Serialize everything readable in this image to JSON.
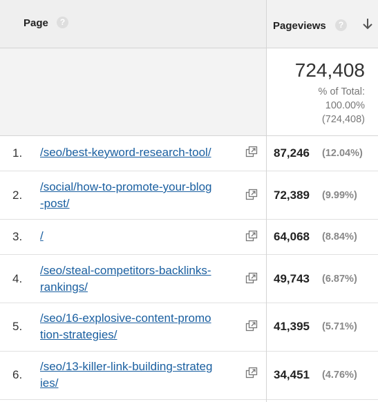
{
  "header": {
    "page_label": "Page",
    "pageviews_label": "Pageviews",
    "help_glyph": "?"
  },
  "totals": {
    "value": "724,408",
    "pct_line1": "% of Total:",
    "pct_line2": "100.00%",
    "pct_line3": "(724,408)"
  },
  "rows": [
    {
      "num": "1.",
      "line1": "/seo/best-keyword-research-tool/",
      "line2": "",
      "pageviews": "87,246",
      "pct": "(12.04%)"
    },
    {
      "num": "2.",
      "line1": "/social/how-to-promote-your-blog",
      "line2": "-post/",
      "pageviews": "72,389",
      "pct": "(9.99%)"
    },
    {
      "num": "3.",
      "line1": "/",
      "line2": "",
      "pageviews": "64,068",
      "pct": "(8.84%)"
    },
    {
      "num": "4.",
      "line1": "/seo/steal-competitors-backlinks-",
      "line2": "rankings/",
      "pageviews": "49,743",
      "pct": "(6.87%)"
    },
    {
      "num": "5.",
      "line1": "/seo/16-explosive-content-promo",
      "line2": "tion-strategies/",
      "pageviews": "41,395",
      "pct": "(5.71%)"
    },
    {
      "num": "6.",
      "line1": "/seo/13-killer-link-building-strateg",
      "line2": "ies/",
      "pageviews": "34,451",
      "pct": "(4.76%)"
    }
  ]
}
